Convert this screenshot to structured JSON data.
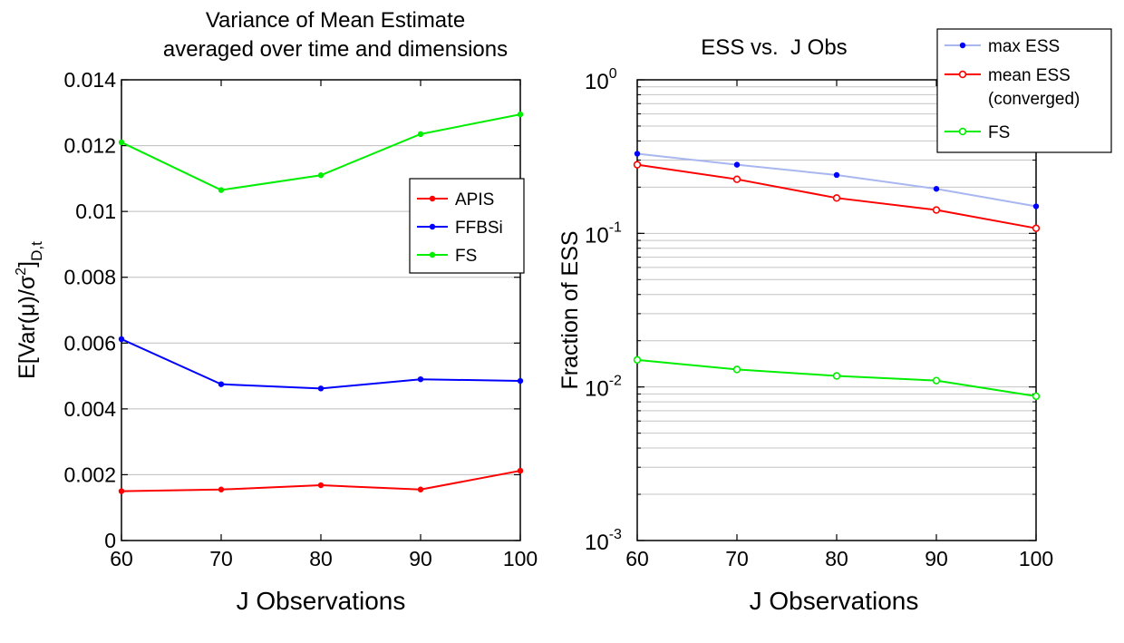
{
  "chart_data": [
    {
      "type": "line",
      "title": [
        "Variance of Mean Estimate",
        "averaged over time and dimensions"
      ],
      "xlabel": "J  Observations",
      "ylabel": "E[Var(μ)/σ²]",
      "ylabel_sup": "2",
      "ylabel_sub": "D,t",
      "ylabel_parts": [
        "E[Var(",
        "μ",
        ")/",
        "σ",
        "]"
      ],
      "x": [
        60,
        70,
        80,
        90,
        100
      ],
      "xlim": [
        60,
        100
      ],
      "ylim": [
        0,
        0.014
      ],
      "xticks": [
        "60",
        "70",
        "80",
        "90",
        "100"
      ],
      "yticks": [
        "0",
        "0.002",
        "0.004",
        "0.006",
        "0.008",
        "0.01",
        "0.012",
        "0.014"
      ],
      "grid": "horizontal",
      "legend_position": "right",
      "series": [
        {
          "name": "APIS",
          "color": "#ff0000",
          "values": [
            0.0015,
            0.00155,
            0.00168,
            0.00155,
            0.00212
          ]
        },
        {
          "name": "FFBSi",
          "color": "#0000ff",
          "values": [
            0.00612,
            0.00475,
            0.00462,
            0.0049,
            0.00485
          ]
        },
        {
          "name": "FS",
          "color": "#00ee00",
          "values": [
            0.0121,
            0.01065,
            0.0111,
            0.01235,
            0.01295
          ]
        }
      ]
    },
    {
      "type": "line",
      "yscale": "log",
      "title": [
        "ESS vs.  J Obs"
      ],
      "xlabel": "J  Observations",
      "ylabel": "Fraction of ESS",
      "x": [
        60,
        70,
        80,
        90,
        100
      ],
      "xlim": [
        60,
        100
      ],
      "ylim": [
        0.001,
        1
      ],
      "xticks": [
        "60",
        "70",
        "80",
        "90",
        "100"
      ],
      "yticks": [
        {
          "base": "10",
          "exp": "0"
        },
        {
          "base": "10",
          "exp": "-1"
        },
        {
          "base": "10",
          "exp": "-2"
        },
        {
          "base": "10",
          "exp": "-3"
        }
      ],
      "grid": "horizontal-minor",
      "legend_position": "top-right",
      "series": [
        {
          "name": "max ESS",
          "label_lines": [
            "max ESS"
          ],
          "color": "#a9b7f0",
          "marker_color": "#0000ff",
          "marker": "dot",
          "values": [
            0.33,
            0.28,
            0.24,
            0.195,
            0.15
          ]
        },
        {
          "name": "mean ESS (converged)",
          "label_lines": [
            "mean ESS",
            "(converged)"
          ],
          "color": "#ff0000",
          "marker_color": "#ff0000",
          "marker": "circle",
          "values": [
            0.28,
            0.225,
            0.17,
            0.142,
            0.108
          ]
        },
        {
          "name": "FS",
          "label_lines": [
            "FS"
          ],
          "color": "#00ee00",
          "marker_color": "#00ee00",
          "marker": "circle",
          "values": [
            0.015,
            0.013,
            0.0118,
            0.011,
            0.0087
          ]
        }
      ]
    }
  ]
}
